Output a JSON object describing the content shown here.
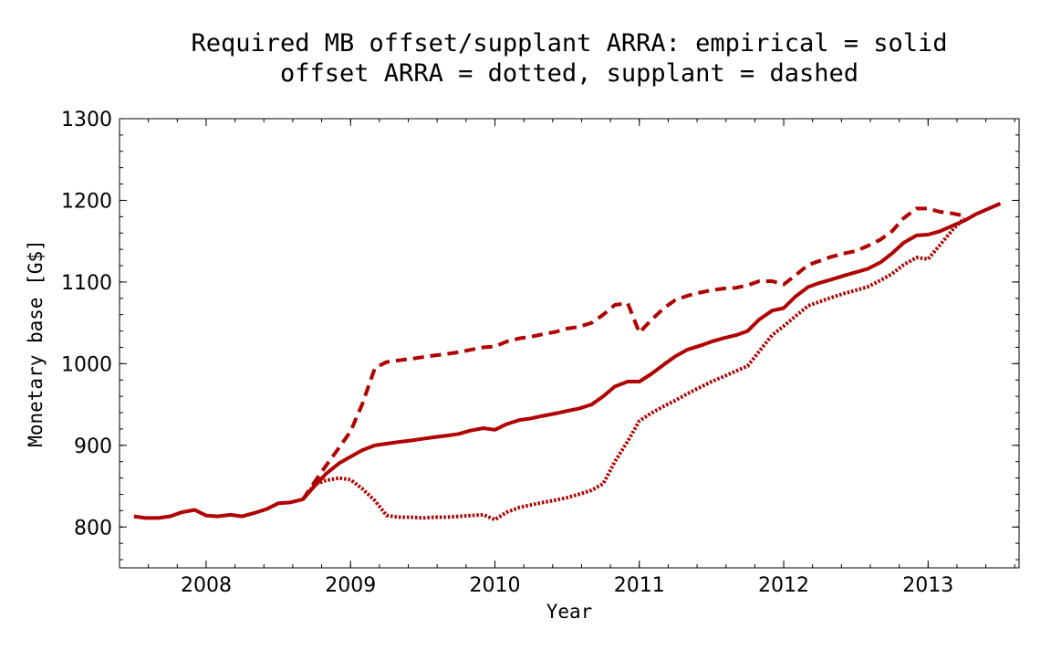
{
  "chart_data": {
    "type": "line",
    "title": "Required MB offset/supplant ARRA: empirical = solid",
    "subtitle": "offset ARRA = dotted, supplant = dashed",
    "xlabel": "Year",
    "ylabel": "Monetary base [G$]",
    "xlim": [
      2007.4,
      2013.63
    ],
    "ylim": [
      750,
      1300
    ],
    "x_ticks": [
      "2008",
      "2009",
      "2010",
      "2011",
      "2012",
      "2013"
    ],
    "y_ticks": [
      "800",
      "900",
      "1000",
      "1100",
      "1200",
      "1300"
    ],
    "grid": false,
    "line_color": "#b00000",
    "series": [
      {
        "style": "solid",
        "x": [
          2007.5,
          2007.58,
          2007.67,
          2007.75,
          2007.83,
          2007.92,
          2008.0,
          2008.08,
          2008.17,
          2008.25,
          2008.33,
          2008.42,
          2008.5,
          2008.58,
          2008.67,
          2008.75,
          2008.83,
          2008.92,
          2009.0,
          2009.08,
          2009.17,
          2009.25,
          2009.33,
          2009.42,
          2009.5,
          2009.58,
          2009.67,
          2009.75,
          2009.83,
          2009.92,
          2010.0,
          2010.08,
          2010.17,
          2010.25,
          2010.33,
          2010.42,
          2010.5,
          2010.58,
          2010.67,
          2010.75,
          2010.83,
          2010.92,
          2011.0,
          2011.08,
          2011.17,
          2011.25,
          2011.33,
          2011.42,
          2011.5,
          2011.58,
          2011.67,
          2011.75,
          2011.83,
          2011.92,
          2012.0,
          2012.08,
          2012.17,
          2012.25,
          2012.33,
          2012.42,
          2012.5,
          2012.58,
          2012.67,
          2012.75,
          2012.83,
          2012.92,
          2013.0,
          2013.08,
          2013.17,
          2013.25,
          2013.33,
          2013.42,
          2013.5
        ],
        "y": [
          813,
          811,
          811,
          813,
          818,
          821,
          814,
          813,
          815,
          813,
          817,
          822,
          829,
          830,
          834,
          850,
          865,
          878,
          886,
          894,
          900,
          902,
          904,
          906,
          908,
          910,
          912,
          914,
          918,
          921,
          919,
          926,
          931,
          933,
          936,
          939,
          942,
          945,
          950,
          960,
          972,
          978,
          978,
          987,
          999,
          1009,
          1017,
          1022,
          1027,
          1031,
          1035,
          1040,
          1054,
          1065,
          1068,
          1082,
          1094,
          1099,
          1103,
          1108,
          1112,
          1116,
          1124,
          1135,
          1148,
          1157,
          1158,
          1162,
          1169,
          1175,
          1183,
          1190,
          1196
        ]
      },
      {
        "style": "dashed",
        "x": [
          2008.67,
          2008.75,
          2008.83,
          2008.92,
          2009.0,
          2009.08,
          2009.17,
          2009.25,
          2009.33,
          2009.42,
          2009.5,
          2009.58,
          2009.67,
          2009.75,
          2009.83,
          2009.92,
          2010.0,
          2010.08,
          2010.17,
          2010.25,
          2010.33,
          2010.42,
          2010.5,
          2010.58,
          2010.67,
          2010.75,
          2010.83,
          2010.92,
          2011.0,
          2011.08,
          2011.17,
          2011.25,
          2011.33,
          2011.42,
          2011.5,
          2011.58,
          2011.67,
          2011.75,
          2011.83,
          2011.92,
          2012.0,
          2012.08,
          2012.17,
          2012.25,
          2012.33,
          2012.42,
          2012.5,
          2012.58,
          2012.67,
          2012.75,
          2012.83,
          2012.92,
          2013.0,
          2013.08,
          2013.17,
          2013.25
        ],
        "y": [
          834,
          855,
          875,
          897,
          917,
          950,
          995,
          1002,
          1004,
          1006,
          1008,
          1010,
          1012,
          1014,
          1017,
          1020,
          1021,
          1027,
          1031,
          1033,
          1036,
          1039,
          1043,
          1045,
          1050,
          1060,
          1072,
          1074,
          1038,
          1053,
          1068,
          1078,
          1083,
          1087,
          1090,
          1092,
          1093,
          1096,
          1101,
          1101,
          1097,
          1108,
          1121,
          1126,
          1131,
          1135,
          1138,
          1144,
          1152,
          1162,
          1178,
          1190,
          1190,
          1186,
          1184,
          1181
        ]
      },
      {
        "style": "dotted",
        "x": [
          2008.67,
          2008.75,
          2008.83,
          2008.92,
          2009.0,
          2009.08,
          2009.17,
          2009.25,
          2009.33,
          2009.42,
          2009.5,
          2009.58,
          2009.67,
          2009.75,
          2009.83,
          2009.92,
          2010.0,
          2010.08,
          2010.17,
          2010.25,
          2010.33,
          2010.42,
          2010.5,
          2010.58,
          2010.67,
          2010.75,
          2010.83,
          2010.92,
          2011.0,
          2011.08,
          2011.17,
          2011.25,
          2011.33,
          2011.42,
          2011.5,
          2011.58,
          2011.67,
          2011.75,
          2011.83,
          2011.92,
          2012.0,
          2012.08,
          2012.17,
          2012.25,
          2012.33,
          2012.42,
          2012.5,
          2012.58,
          2012.67,
          2012.75,
          2012.83,
          2012.92,
          2013.0,
          2013.08,
          2013.17,
          2013.25
        ],
        "y": [
          834,
          852,
          857,
          860,
          858,
          847,
          832,
          814,
          812,
          812,
          811,
          812,
          812,
          813,
          814,
          815,
          809,
          818,
          824,
          827,
          830,
          833,
          836,
          840,
          845,
          853,
          880,
          905,
          930,
          939,
          948,
          955,
          963,
          971,
          978,
          984,
          991,
          997,
          1015,
          1035,
          1046,
          1058,
          1071,
          1076,
          1081,
          1086,
          1090,
          1094,
          1102,
          1110,
          1121,
          1130,
          1128,
          1145,
          1164,
          1178
        ]
      }
    ]
  }
}
